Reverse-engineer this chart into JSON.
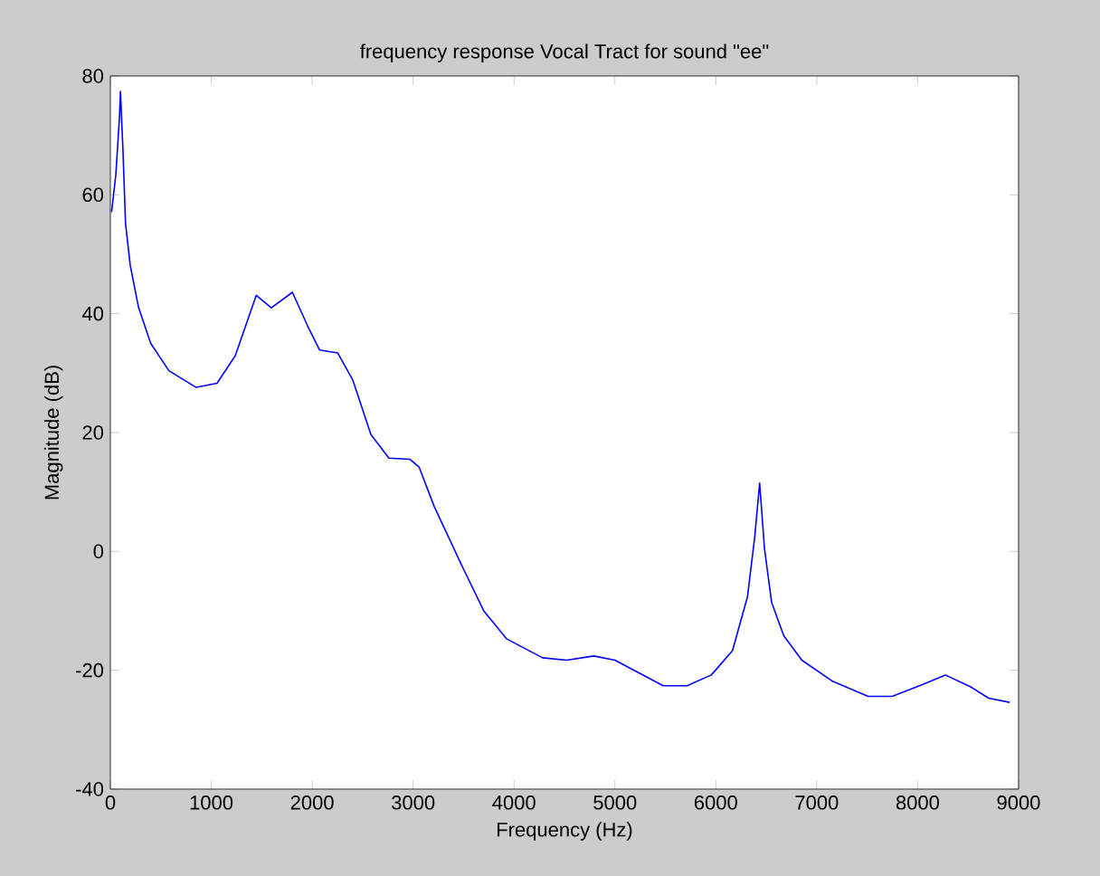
{
  "chart_data": {
    "type": "line",
    "title": "frequency response Vocal Tract for sound \"ee\"",
    "xlabel": "Frequency (Hz)",
    "ylabel": "Magnitude (dB)",
    "xlim": [
      0,
      9000
    ],
    "ylim": [
      -40,
      80
    ],
    "xticks": [
      0,
      1000,
      2000,
      3000,
      4000,
      5000,
      6000,
      7000,
      8000,
      9000
    ],
    "yticks": [
      -40,
      -20,
      0,
      20,
      40,
      60,
      80
    ],
    "series": [
      {
        "color": "#0000ff",
        "x": [
          12,
          54,
          90,
          100,
          125,
          150,
          197,
          280,
          400,
          580,
          850,
          1057,
          1237,
          1446,
          1595,
          1804,
          1953,
          2073,
          2252,
          2401,
          2581,
          2760,
          2969,
          3059,
          3208,
          3500,
          3700,
          3925,
          4283,
          4522,
          4790,
          5000,
          5478,
          5717,
          5955,
          6165,
          6314,
          6386,
          6434,
          6482,
          6553,
          6673,
          6852,
          7151,
          7509,
          7748,
          8047,
          8274,
          8525,
          8704,
          8912
        ],
        "values": [
          57.1,
          63.4,
          73,
          77.4,
          67.4,
          55.2,
          48.1,
          41,
          35,
          30.4,
          27.6,
          28.3,
          32.9,
          43.1,
          41,
          43.6,
          38,
          33.9,
          33.4,
          28.9,
          19.7,
          15.7,
          15.5,
          14.2,
          7.6,
          -3,
          -10,
          -14.7,
          -17.9,
          -18.3,
          -17.6,
          -18.3,
          -22.6,
          -22.6,
          -20.8,
          -16.7,
          -7.6,
          2.5,
          11.5,
          0.5,
          -8.6,
          -14.2,
          -18.3,
          -21.8,
          -24.4,
          -24.4,
          -22.4,
          -20.8,
          -22.8,
          -24.7,
          -25.4
        ]
      }
    ]
  }
}
